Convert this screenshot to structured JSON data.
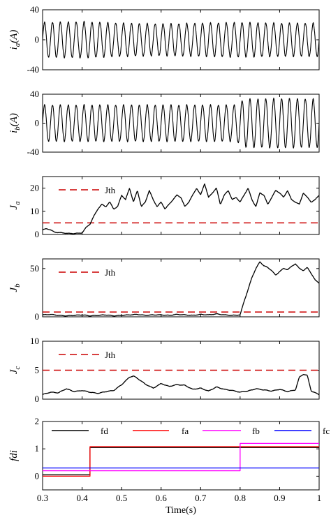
{
  "chart_data": [
    {
      "type": "line",
      "ylabel": "i",
      "ylabel_sub": "a",
      "ylabel_unit": "(A)",
      "xlim": [
        0.3,
        1.0
      ],
      "ylim": [
        -40,
        40
      ],
      "yticks": [
        -40,
        0,
        40
      ],
      "series": [
        {
          "color": "#000000",
          "kind": "sine",
          "freq_hz": 50,
          "x": [
            0.3,
            0.4,
            0.5,
            0.6,
            0.7,
            0.8,
            0.9,
            1.0
          ],
          "amplitude": [
            23,
            24,
            22,
            21,
            22,
            23,
            22,
            22
          ]
        }
      ]
    },
    {
      "type": "line",
      "ylabel": "i",
      "ylabel_sub": "b",
      "ylabel_unit": "(A)",
      "xlim": [
        0.3,
        1.0
      ],
      "ylim": [
        -40,
        40
      ],
      "yticks": [
        -40,
        0,
        40
      ],
      "series": [
        {
          "color": "#000000",
          "kind": "sine",
          "freq_hz": 50,
          "x": [
            0.3,
            0.5,
            0.7,
            0.79,
            0.81,
            0.9,
            1.0
          ],
          "amplitude": [
            25,
            25,
            25,
            25,
            33,
            34,
            33
          ]
        }
      ]
    },
    {
      "type": "line",
      "ylabel": "J",
      "ylabel_sub": "a",
      "xlim": [
        0.3,
        1.0
      ],
      "ylim": [
        0,
        25
      ],
      "yticks": [
        0,
        10,
        20
      ],
      "threshold": {
        "label": "Jth",
        "value": 5,
        "color": "#cc0000"
      },
      "series": [
        {
          "color": "#000000",
          "x": [
            0.3,
            0.31,
            0.32,
            0.33,
            0.35,
            0.37,
            0.39,
            0.4,
            0.41,
            0.42,
            0.43,
            0.44,
            0.45,
            0.46,
            0.47,
            0.48,
            0.49,
            0.5,
            0.51,
            0.52,
            0.53,
            0.54,
            0.55,
            0.56,
            0.57,
            0.58,
            0.59,
            0.6,
            0.61,
            0.62,
            0.63,
            0.64,
            0.65,
            0.66,
            0.67,
            0.68,
            0.69,
            0.7,
            0.71,
            0.72,
            0.73,
            0.74,
            0.75,
            0.76,
            0.77,
            0.78,
            0.79,
            0.8,
            0.81,
            0.82,
            0.83,
            0.84,
            0.85,
            0.86,
            0.87,
            0.88,
            0.89,
            0.9,
            0.91,
            0.92,
            0.93,
            0.94,
            0.95,
            0.96,
            0.97,
            0.98,
            0.99,
            1.0
          ],
          "values": [
            2,
            2.5,
            2,
            1,
            0.7,
            0.4,
            0.5,
            0.7,
            3,
            4.5,
            8,
            11,
            13,
            12,
            14,
            11,
            12,
            17,
            15,
            20,
            14,
            19,
            12,
            14,
            19,
            15,
            12,
            14,
            11,
            13,
            15,
            17,
            16,
            12,
            14,
            17,
            20,
            17,
            22,
            16,
            18,
            20,
            13,
            17,
            19,
            15,
            16,
            14,
            17,
            20,
            15,
            12,
            18,
            17,
            13,
            16,
            19,
            18,
            16,
            19,
            15,
            14,
            13,
            18,
            16,
            14,
            15,
            17
          ]
        }
      ]
    },
    {
      "type": "line",
      "ylabel": "J",
      "ylabel_sub": "b",
      "xlim": [
        0.3,
        1.0
      ],
      "ylim": [
        0,
        60
      ],
      "yticks": [
        0,
        50
      ],
      "threshold": {
        "label": "Jth",
        "value": 5,
        "color": "#cc0000"
      },
      "series": [
        {
          "color": "#000000",
          "x": [
            0.3,
            0.32,
            0.34,
            0.36,
            0.38,
            0.4,
            0.42,
            0.44,
            0.46,
            0.48,
            0.5,
            0.52,
            0.54,
            0.56,
            0.58,
            0.6,
            0.62,
            0.64,
            0.66,
            0.68,
            0.7,
            0.72,
            0.74,
            0.76,
            0.78,
            0.8,
            0.81,
            0.82,
            0.83,
            0.84,
            0.85,
            0.86,
            0.87,
            0.88,
            0.89,
            0.9,
            0.91,
            0.92,
            0.93,
            0.94,
            0.95,
            0.96,
            0.97,
            0.98,
            0.99,
            1.0
          ],
          "values": [
            2,
            2.5,
            1.5,
            1,
            1.5,
            2,
            1,
            1.5,
            2,
            1,
            1.5,
            2,
            2.5,
            1.5,
            2,
            2,
            1.5,
            2.5,
            2,
            1.5,
            2.5,
            2,
            3,
            2,
            1.5,
            2,
            16,
            28,
            41,
            50,
            57,
            53,
            51,
            48,
            43,
            47,
            50,
            49,
            52,
            55,
            50,
            48,
            51,
            45,
            38,
            35
          ]
        }
      ]
    },
    {
      "type": "line",
      "ylabel": "J",
      "ylabel_sub": "c",
      "xlim": [
        0.3,
        1.0
      ],
      "ylim": [
        0,
        10
      ],
      "yticks": [
        0,
        5,
        10
      ],
      "threshold": {
        "label": "Jth",
        "value": 5,
        "color": "#cc0000"
      },
      "series": [
        {
          "color": "#000000",
          "x": [
            0.3,
            0.32,
            0.34,
            0.36,
            0.38,
            0.4,
            0.42,
            0.44,
            0.46,
            0.48,
            0.5,
            0.52,
            0.53,
            0.54,
            0.56,
            0.58,
            0.6,
            0.62,
            0.64,
            0.66,
            0.68,
            0.7,
            0.72,
            0.74,
            0.76,
            0.78,
            0.8,
            0.82,
            0.84,
            0.86,
            0.88,
            0.9,
            0.92,
            0.94,
            0.95,
            0.96,
            0.97,
            0.98,
            1.0
          ],
          "values": [
            0.8,
            1.2,
            1.1,
            1.8,
            1.3,
            1.5,
            1.2,
            1,
            1.3,
            1.5,
            2.5,
            3.8,
            4,
            3.6,
            2.6,
            1.9,
            2.7,
            2.2,
            2.5,
            2.4,
            1.7,
            1.9,
            1.4,
            2.1,
            1.7,
            1.5,
            1.2,
            1.4,
            1.8,
            1.6,
            1.4,
            1.7,
            1.3,
            1.6,
            3.8,
            4.3,
            4.1,
            1.4,
            0.8
          ]
        }
      ]
    },
    {
      "type": "line",
      "ylabel": "fdi",
      "xlabel": "Time(s)",
      "xlim": [
        0.3,
        1.0
      ],
      "xticks": [
        0.3,
        0.4,
        0.5,
        0.6,
        0.7,
        0.8,
        0.9,
        1.0
      ],
      "ylim": [
        -0.5,
        2
      ],
      "yticks": [
        0,
        1,
        2
      ],
      "legend": {
        "placement": "top",
        "columns": 4
      },
      "series": [
        {
          "name": "fd",
          "color": "#000000",
          "x": [
            0.3,
            0.42,
            0.42,
            0.8,
            0.8,
            1.0
          ],
          "values": [
            0.05,
            0.05,
            1.05,
            1.05,
            1.05,
            1.05
          ]
        },
        {
          "name": "fa",
          "color": "#ff0000",
          "x": [
            0.3,
            0.42,
            0.42,
            1.0
          ],
          "values": [
            0.0,
            0.0,
            1.08,
            1.08
          ]
        },
        {
          "name": "fb",
          "color": "#ff00ff",
          "x": [
            0.3,
            0.8,
            0.8,
            1.0
          ],
          "values": [
            0.2,
            0.2,
            1.2,
            1.2
          ]
        },
        {
          "name": "fc",
          "color": "#0000ff",
          "x": [
            0.3,
            1.0
          ],
          "values": [
            0.3,
            0.3
          ]
        }
      ]
    }
  ]
}
